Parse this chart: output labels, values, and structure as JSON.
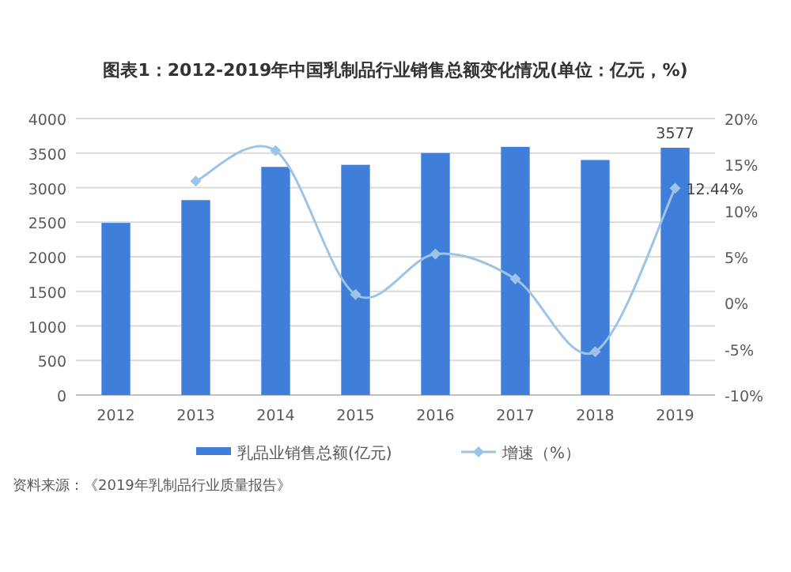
{
  "chart_data": {
    "type": "bar",
    "title": "图表1：2012-2019年中国乳制品行业销售总额变化情况(单位：亿元，%)",
    "categories": [
      "2012",
      "2013",
      "2014",
      "2015",
      "2016",
      "2017",
      "2018",
      "2019"
    ],
    "series": [
      {
        "name": "乳品业销售总额(亿元)",
        "color": "#3f7fd9",
        "values": [
          2490,
          2820,
          3300,
          3330,
          3500,
          3590,
          3400,
          3577
        ],
        "value_labels": [
          null,
          null,
          null,
          null,
          null,
          null,
          null,
          "3577"
        ]
      },
      {
        "name": "增速（%）",
        "type": "line",
        "axis": "y2",
        "color": "#9dc3e6",
        "marker": "diamond",
        "values": [
          null,
          13.2,
          16.5,
          0.9,
          5.3,
          2.6,
          -5.3,
          12.44
        ],
        "value_labels": [
          null,
          null,
          null,
          null,
          null,
          null,
          null,
          "12.44%"
        ]
      }
    ],
    "ylim": [
      0,
      4000
    ],
    "yticks": [
      0,
      500,
      1000,
      1500,
      2000,
      2500,
      3000,
      3500,
      4000
    ],
    "y2lim": [
      -10,
      20
    ],
    "y2ticks": [
      {
        "value": -10,
        "label": "-10%"
      },
      {
        "value": -5,
        "label": "-5%"
      },
      {
        "value": 0,
        "label": "0%"
      },
      {
        "value": 5,
        "label": "5%"
      },
      {
        "value": 10,
        "label": "10%"
      },
      {
        "value": 15,
        "label": "15%"
      },
      {
        "value": 20,
        "label": "20%"
      }
    ],
    "grid": "y",
    "legend": "bottom",
    "annotations": [
      "资料来源：《2019年乳制品行业质量报告》"
    ]
  }
}
